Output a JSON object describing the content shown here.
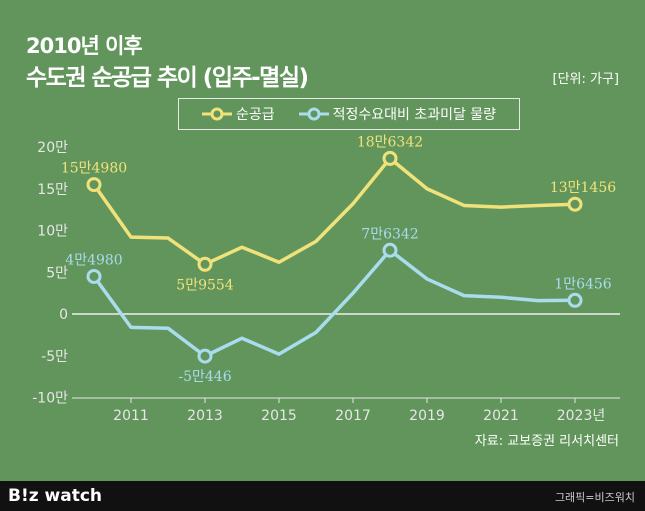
{
  "header": {
    "subtitle": "2010년 이후",
    "title": "수도권 순공급 추이 (입주-멸실)",
    "unit": "[단위: 가구]"
  },
  "source": "자료: 교보증권 리서치센터",
  "footer": {
    "logo": "B!z watch",
    "credit": "그래픽=비즈워치"
  },
  "colors": {
    "background": "#62955c",
    "yellow": "#f0e27a",
    "blue": "#a9dcec"
  },
  "chart_data": {
    "type": "line",
    "x": [
      2010,
      2011,
      2012,
      2013,
      2014,
      2015,
      2016,
      2017,
      2018,
      2019,
      2020,
      2021,
      2022,
      2023
    ],
    "x_ticks": [
      "2011",
      "2013",
      "2015",
      "2017",
      "2019",
      "2021",
      "2023년"
    ],
    "y_ticks": [
      "20만",
      "15만",
      "10만",
      "5만",
      "0",
      "-5만",
      "-10만"
    ],
    "ylim": [
      -10,
      20
    ],
    "ylabel_unit": "만 가구",
    "legend_position": "top",
    "series": [
      {
        "name": "순공급",
        "color": "#f0e27a",
        "values": [
          15.498,
          9.2,
          9.1,
          5.9554,
          8.0,
          6.2,
          8.7,
          13.2,
          18.6342,
          15.0,
          13.0,
          12.8,
          13.0,
          13.1456
        ],
        "labels": [
          {
            "x": 2010,
            "text": "15만4980"
          },
          {
            "x": 2013,
            "text": "5만9554"
          },
          {
            "x": 2018,
            "text": "18만6342"
          },
          {
            "x": 2023,
            "text": "13만1456"
          }
        ]
      },
      {
        "name": "적정수요대비 초과미달 물량",
        "color": "#a9dcec",
        "values": [
          4.498,
          -1.6,
          -1.7,
          -5.0446,
          -2.9,
          -4.8,
          -2.2,
          2.5,
          7.6342,
          4.2,
          2.2,
          2.0,
          1.6,
          1.6456
        ],
        "labels": [
          {
            "x": 2010,
            "text": "4만4980"
          },
          {
            "x": 2013,
            "text": "-5만446"
          },
          {
            "x": 2018,
            "text": "7만6342"
          },
          {
            "x": 2023,
            "text": "1만6456"
          }
        ]
      }
    ]
  }
}
